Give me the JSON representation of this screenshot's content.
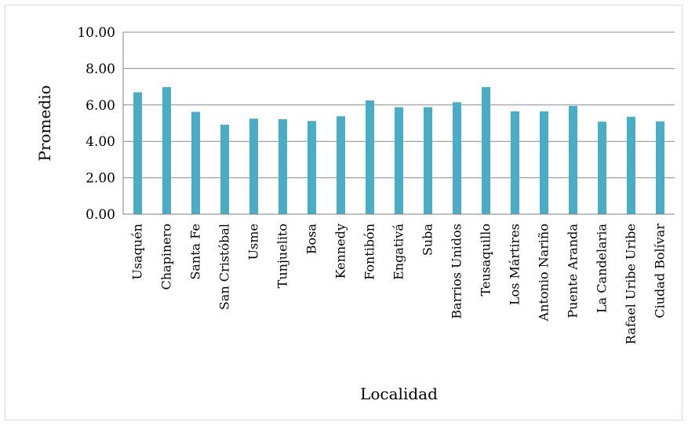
{
  "chart_data": {
    "type": "bar",
    "xlabel": "Localidad",
    "ylabel": "Promedio",
    "ylim": [
      0,
      10
    ],
    "yticks": [
      "0.00",
      "2.00",
      "4.00",
      "6.00",
      "8.00",
      "10.00"
    ],
    "grid": true,
    "bar_color": "#4bacc6",
    "categories": [
      "Usaquén",
      "Chapinero",
      "Santa Fe",
      "San Cristóbal",
      "Usme",
      "Tunjuelito",
      "Bosa",
      "Kennedy",
      "Fontibón",
      "Engativá",
      "Suba",
      "Barrios Unidos",
      "Teusaquillo",
      "Los Mártires",
      "Antonio Nariño",
      "Puente Aranda",
      "La Candelaria",
      "Rafael Uribe Uribe",
      "Ciudad Bolívar"
    ],
    "values": [
      6.7,
      6.98,
      5.62,
      4.92,
      5.25,
      5.22,
      5.12,
      5.38,
      6.25,
      5.88,
      5.88,
      6.15,
      6.98,
      5.65,
      5.65,
      5.95,
      5.08,
      5.35,
      5.1
    ]
  }
}
